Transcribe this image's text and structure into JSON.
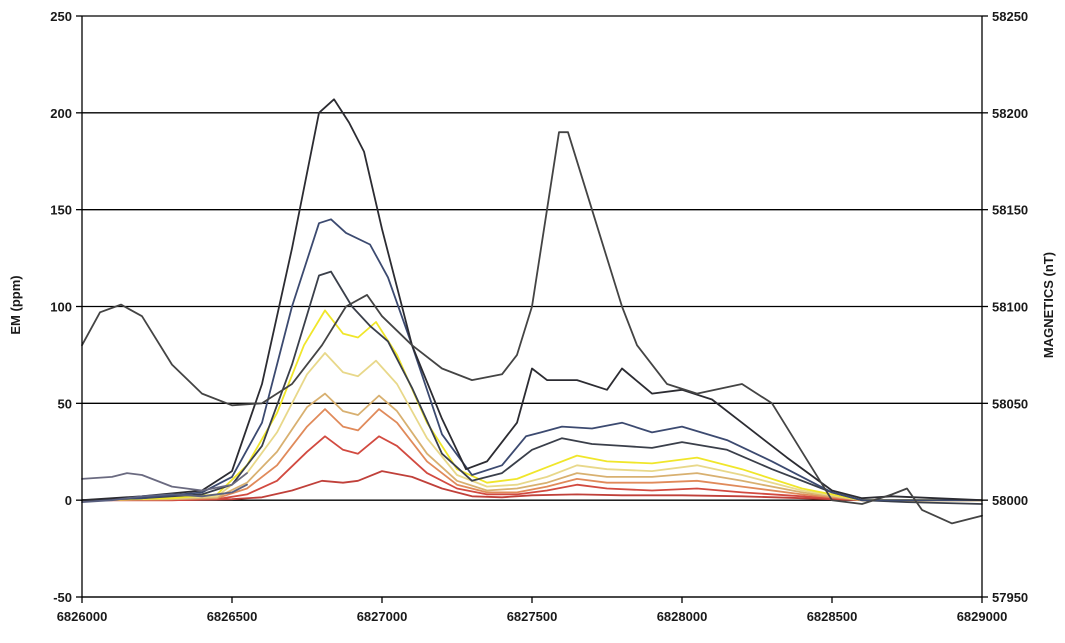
{
  "chart_data": {
    "type": "line",
    "title": "",
    "xlabel": "",
    "ylabel_left": "EM (ppm)",
    "ylabel_right": "MAGNETICS (nT)",
    "xlim": [
      6826000,
      6829000
    ],
    "ylim_left": [
      -50,
      250
    ],
    "ylim_right": [
      57950,
      58250
    ],
    "grid": "horizontal",
    "legend": "none",
    "x_ticks": [
      "6826000",
      "6826500",
      "6827000",
      "6827500",
      "6828000",
      "6828500",
      "6829000"
    ],
    "y_left_ticks": [
      "-50",
      "0",
      "50",
      "100",
      "150",
      "200",
      "250"
    ],
    "y_right_ticks": [
      "57950",
      "58000",
      "58050",
      "58100",
      "58150",
      "58200",
      "58250"
    ],
    "series": [
      {
        "color": "#c0403a",
        "axis": "left",
        "points": [
          [
            6826000,
            0
          ],
          [
            6826300,
            0
          ],
          [
            6826500,
            0.5
          ],
          [
            6826600,
            1.5
          ],
          [
            6826700,
            5
          ],
          [
            6826800,
            10
          ],
          [
            6826870,
            9
          ],
          [
            6826920,
            10
          ],
          [
            6827000,
            15
          ],
          [
            6827100,
            12
          ],
          [
            6827200,
            6
          ],
          [
            6827300,
            2
          ],
          [
            6827400,
            1.5
          ],
          [
            6827500,
            2.5
          ],
          [
            6827650,
            3
          ],
          [
            6827800,
            2.5
          ],
          [
            6828000,
            2.5
          ],
          [
            6828200,
            2
          ],
          [
            6828400,
            1
          ],
          [
            6828600,
            0
          ],
          [
            6829000,
            0
          ]
        ]
      },
      {
        "color": "#d24a40",
        "axis": "left",
        "points": [
          [
            6826000,
            0
          ],
          [
            6826300,
            0
          ],
          [
            6826450,
            0.5
          ],
          [
            6826550,
            3
          ],
          [
            6826650,
            10
          ],
          [
            6826750,
            25
          ],
          [
            6826810,
            33
          ],
          [
            6826870,
            26
          ],
          [
            6826920,
            24
          ],
          [
            6826990,
            33
          ],
          [
            6827050,
            28
          ],
          [
            6827150,
            14
          ],
          [
            6827250,
            6
          ],
          [
            6827350,
            3
          ],
          [
            6827450,
            3
          ],
          [
            6827550,
            5
          ],
          [
            6827650,
            8
          ],
          [
            6827750,
            6
          ],
          [
            6827900,
            5
          ],
          [
            6828050,
            6
          ],
          [
            6828200,
            4
          ],
          [
            6828400,
            2
          ],
          [
            6828600,
            0
          ],
          [
            6829000,
            0
          ]
        ]
      },
      {
        "color": "#e08a5a",
        "axis": "left",
        "points": [
          [
            6826000,
            0
          ],
          [
            6826300,
            0.5
          ],
          [
            6826450,
            1
          ],
          [
            6826550,
            6
          ],
          [
            6826650,
            18
          ],
          [
            6826750,
            38
          ],
          [
            6826810,
            47
          ],
          [
            6826870,
            38
          ],
          [
            6826920,
            36
          ],
          [
            6826990,
            47
          ],
          [
            6827050,
            40
          ],
          [
            6827150,
            20
          ],
          [
            6827250,
            8
          ],
          [
            6827350,
            4
          ],
          [
            6827450,
            4
          ],
          [
            6827550,
            7
          ],
          [
            6827650,
            11
          ],
          [
            6827750,
            9
          ],
          [
            6827900,
            9
          ],
          [
            6828050,
            10
          ],
          [
            6828200,
            7
          ],
          [
            6828400,
            3
          ],
          [
            6828600,
            0
          ],
          [
            6829000,
            0
          ]
        ]
      },
      {
        "color": "#d8b070",
        "axis": "left",
        "points": [
          [
            6826000,
            0
          ],
          [
            6826300,
            0.5
          ],
          [
            6826450,
            1.5
          ],
          [
            6826550,
            9
          ],
          [
            6826650,
            25
          ],
          [
            6826750,
            48
          ],
          [
            6826810,
            55
          ],
          [
            6826870,
            46
          ],
          [
            6826920,
            44
          ],
          [
            6826990,
            54
          ],
          [
            6827050,
            46
          ],
          [
            6827150,
            24
          ],
          [
            6827250,
            10
          ],
          [
            6827350,
            5
          ],
          [
            6827450,
            6
          ],
          [
            6827550,
            9
          ],
          [
            6827650,
            14
          ],
          [
            6827750,
            12
          ],
          [
            6827900,
            12
          ],
          [
            6828050,
            14
          ],
          [
            6828200,
            10
          ],
          [
            6828400,
            4
          ],
          [
            6828600,
            0
          ],
          [
            6829000,
            0
          ]
        ]
      },
      {
        "color": "#e8d88a",
        "axis": "left",
        "points": [
          [
            6826000,
            0
          ],
          [
            6826300,
            1
          ],
          [
            6826450,
            2
          ],
          [
            6826550,
            14
          ],
          [
            6826650,
            35
          ],
          [
            6826750,
            65
          ],
          [
            6826810,
            76
          ],
          [
            6826870,
            66
          ],
          [
            6826920,
            64
          ],
          [
            6826980,
            72
          ],
          [
            6827050,
            60
          ],
          [
            6827150,
            32
          ],
          [
            6827250,
            13
          ],
          [
            6827350,
            7
          ],
          [
            6827450,
            8
          ],
          [
            6827550,
            12
          ],
          [
            6827650,
            18
          ],
          [
            6827750,
            16
          ],
          [
            6827900,
            15
          ],
          [
            6828050,
            18
          ],
          [
            6828200,
            13
          ],
          [
            6828400,
            5
          ],
          [
            6828600,
            0
          ],
          [
            6829000,
            0
          ]
        ]
      },
      {
        "color": "#f0e62a",
        "axis": "left",
        "points": [
          [
            6826000,
            0
          ],
          [
            6826300,
            1
          ],
          [
            6826450,
            3
          ],
          [
            6826550,
            18
          ],
          [
            6826650,
            45
          ],
          [
            6826740,
            80
          ],
          [
            6826810,
            98
          ],
          [
            6826870,
            86
          ],
          [
            6826920,
            84
          ],
          [
            6826980,
            92
          ],
          [
            6827050,
            75
          ],
          [
            6827150,
            40
          ],
          [
            6827250,
            16
          ],
          [
            6827350,
            9
          ],
          [
            6827450,
            11
          ],
          [
            6827550,
            17
          ],
          [
            6827650,
            23
          ],
          [
            6827750,
            20
          ],
          [
            6827900,
            19
          ],
          [
            6828050,
            22
          ],
          [
            6828200,
            16
          ],
          [
            6828400,
            6
          ],
          [
            6828600,
            0
          ],
          [
            6829000,
            0
          ]
        ]
      },
      {
        "color": "#3a3f4a",
        "axis": "left",
        "points": [
          [
            6826000,
            0
          ],
          [
            6826200,
            1
          ],
          [
            6826400,
            3
          ],
          [
            6826500,
            8
          ],
          [
            6826600,
            28
          ],
          [
            6826700,
            70
          ],
          [
            6826790,
            116
          ],
          [
            6826830,
            118
          ],
          [
            6826900,
            100
          ],
          [
            6826960,
            90
          ],
          [
            6827020,
            82
          ],
          [
            6827100,
            58
          ],
          [
            6827200,
            24
          ],
          [
            6827300,
            10
          ],
          [
            6827400,
            14
          ],
          [
            6827500,
            26
          ],
          [
            6827600,
            32
          ],
          [
            6827700,
            29
          ],
          [
            6827800,
            28
          ],
          [
            6827900,
            27
          ],
          [
            6828000,
            30
          ],
          [
            6828150,
            26
          ],
          [
            6828300,
            16
          ],
          [
            6828500,
            4
          ],
          [
            6828600,
            0
          ],
          [
            6828750,
            -1
          ],
          [
            6829000,
            -2
          ]
        ]
      },
      {
        "color": "#3c4a70",
        "axis": "left",
        "points": [
          [
            6826000,
            0
          ],
          [
            6826200,
            1
          ],
          [
            6826400,
            4
          ],
          [
            6826500,
            12
          ],
          [
            6826600,
            40
          ],
          [
            6826700,
            100
          ],
          [
            6826790,
            143
          ],
          [
            6826830,
            145
          ],
          [
            6826880,
            138
          ],
          [
            6826960,
            132
          ],
          [
            6827020,
            115
          ],
          [
            6827100,
            80
          ],
          [
            6827200,
            34
          ],
          [
            6827300,
            13
          ],
          [
            6827400,
            18
          ],
          [
            6827480,
            33
          ],
          [
            6827530,
            35
          ],
          [
            6827600,
            38
          ],
          [
            6827700,
            37
          ],
          [
            6827800,
            40
          ],
          [
            6827900,
            35
          ],
          [
            6828000,
            38
          ],
          [
            6828150,
            31
          ],
          [
            6828300,
            20
          ],
          [
            6828500,
            4
          ],
          [
            6828600,
            0
          ],
          [
            6829000,
            0
          ]
        ]
      },
      {
        "color": "#2c2c32",
        "axis": "left",
        "points": [
          [
            6826000,
            0
          ],
          [
            6826200,
            2
          ],
          [
            6826400,
            5
          ],
          [
            6826500,
            15
          ],
          [
            6826600,
            60
          ],
          [
            6826700,
            130
          ],
          [
            6826790,
            200
          ],
          [
            6826840,
            207
          ],
          [
            6826890,
            195
          ],
          [
            6826940,
            180
          ],
          [
            6827000,
            140
          ],
          [
            6827100,
            80
          ],
          [
            6827200,
            42
          ],
          [
            6827280,
            16
          ],
          [
            6827350,
            20
          ],
          [
            6827450,
            40
          ],
          [
            6827500,
            68
          ],
          [
            6827550,
            62
          ],
          [
            6827650,
            62
          ],
          [
            6827750,
            57
          ],
          [
            6827800,
            68
          ],
          [
            6827900,
            55
          ],
          [
            6828000,
            57
          ],
          [
            6828100,
            52
          ],
          [
            6828200,
            40
          ],
          [
            6828350,
            22
          ],
          [
            6828500,
            5
          ],
          [
            6828600,
            1
          ],
          [
            6828700,
            2
          ],
          [
            6829000,
            0
          ]
        ]
      },
      {
        "color": "#444444",
        "axis": "right",
        "points": [
          [
            6826000,
            58080
          ],
          [
            6826060,
            58097
          ],
          [
            6826130,
            58101
          ],
          [
            6826200,
            58095
          ],
          [
            6826300,
            58070
          ],
          [
            6826400,
            58055
          ],
          [
            6826500,
            58049
          ],
          [
            6826600,
            58050
          ],
          [
            6826700,
            58060
          ],
          [
            6826800,
            58080
          ],
          [
            6826880,
            58100
          ],
          [
            6826950,
            58106
          ],
          [
            6827000,
            58095
          ],
          [
            6827100,
            58080
          ],
          [
            6827200,
            58068
          ],
          [
            6827300,
            58062
          ],
          [
            6827400,
            58065
          ],
          [
            6827450,
            58075
          ],
          [
            6827500,
            58100
          ],
          [
            6827550,
            58150
          ],
          [
            6827590,
            58190
          ],
          [
            6827620,
            58190
          ],
          [
            6827700,
            58150
          ],
          [
            6827800,
            58100
          ],
          [
            6827850,
            58080
          ],
          [
            6827950,
            58060
          ],
          [
            6828050,
            58055
          ],
          [
            6828200,
            58060
          ],
          [
            6828300,
            58050
          ],
          [
            6828400,
            58025
          ],
          [
            6828500,
            58000
          ],
          [
            6828600,
            57998
          ],
          [
            6828700,
            58003
          ],
          [
            6828750,
            58006
          ],
          [
            6828800,
            57995
          ],
          [
            6828900,
            57988
          ],
          [
            6829000,
            57992
          ]
        ]
      },
      {
        "color": "#6a6a80",
        "axis": "left",
        "points": [
          [
            6826000,
            11
          ],
          [
            6826100,
            12
          ],
          [
            6826150,
            14
          ],
          [
            6826200,
            13
          ],
          [
            6826300,
            7
          ],
          [
            6826400,
            5
          ],
          [
            6826500,
            8
          ],
          [
            6826550,
            14
          ]
        ]
      },
      {
        "color": "#5a6080",
        "axis": "left",
        "points": [
          [
            6826000,
            -1
          ],
          [
            6826100,
            0
          ],
          [
            6826200,
            2
          ],
          [
            6826300,
            3
          ],
          [
            6826400,
            2
          ],
          [
            6826500,
            4
          ],
          [
            6826550,
            8
          ]
        ]
      }
    ]
  }
}
